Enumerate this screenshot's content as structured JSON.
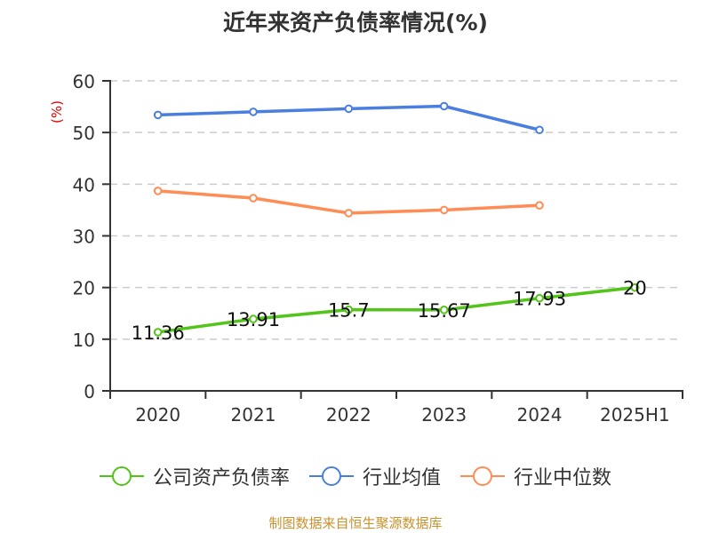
{
  "title": "近年来资产负债率情况(%)",
  "source": "制图数据来自恒生聚源数据库",
  "colors": {
    "company": "#52c41a",
    "industry_avg": "#4a7fe0",
    "industry_median": "#ff8c55",
    "unit_label": "#e00000",
    "axis": "#333333",
    "grid": "#cccccc",
    "source": "#c8922e"
  },
  "legend": [
    {
      "label": "公司资产负债率",
      "color": "#52c41a"
    },
    {
      "label": "行业均值",
      "color": "#4a7fe0"
    },
    {
      "label": "行业中位数",
      "color": "#ff8c55"
    }
  ],
  "chart_data": {
    "type": "line",
    "title": "近年来资产负债率情况(%)",
    "xlabel": "",
    "ylabel": "(%)",
    "ylim": [
      0,
      60
    ],
    "yticks": [
      0,
      10,
      20,
      30,
      40,
      50,
      60
    ],
    "grid": true,
    "legend_position": "bottom",
    "categories": [
      "2020",
      "2021",
      "2022",
      "2023",
      "2024",
      "2025H1"
    ],
    "series": [
      {
        "name": "公司资产负债率",
        "values": [
          11.36,
          13.91,
          15.7,
          15.67,
          17.93,
          20
        ],
        "labels": [
          "11.36",
          "13.91",
          "15.7",
          "15.67",
          "17.93",
          "20"
        ]
      },
      {
        "name": "行业均值",
        "values": [
          53.4,
          54.0,
          54.6,
          55.1,
          50.5,
          null
        ]
      },
      {
        "name": "行业中位数",
        "values": [
          38.7,
          37.3,
          34.4,
          35.0,
          35.9,
          null
        ]
      }
    ]
  }
}
